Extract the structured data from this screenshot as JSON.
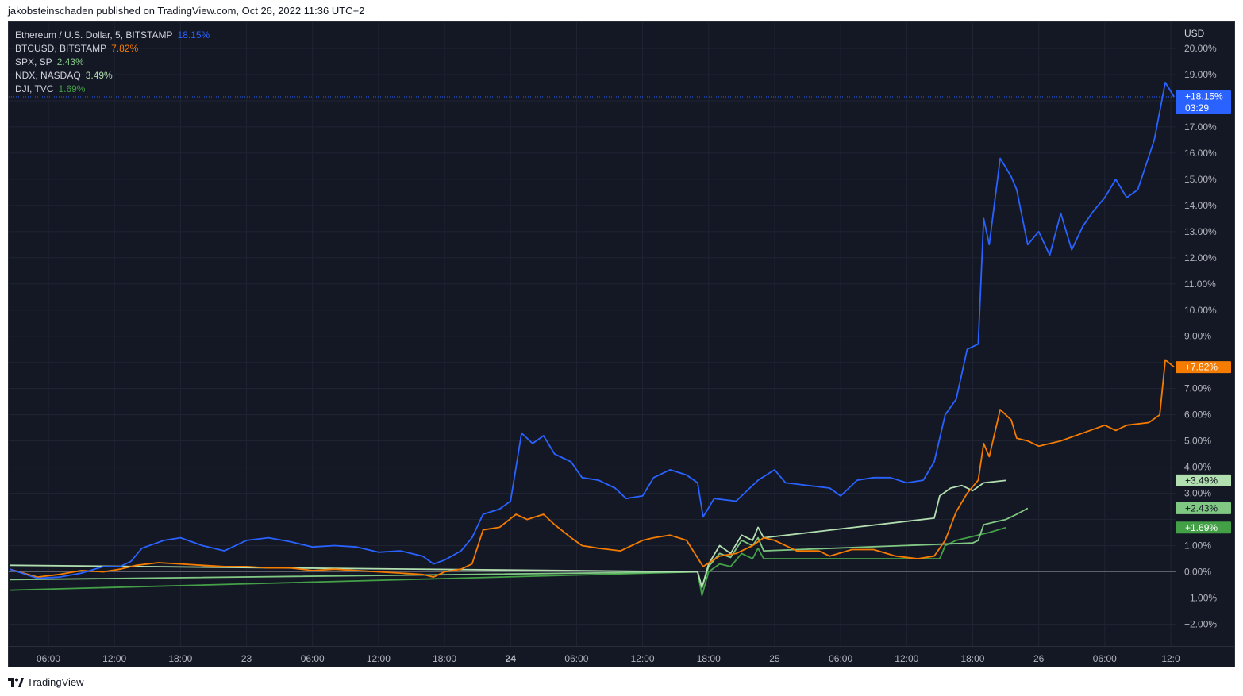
{
  "header": {
    "text": "jakobsteinschaden published on TradingView.com, Oct 26, 2022 11:36 UTC+2"
  },
  "footer": {
    "brand": "TradingView",
    "logo_icon": "tradingview-logo-icon"
  },
  "chart_data": {
    "type": "line",
    "currency_label": "USD",
    "y_unit": "%",
    "ylim": [
      -3.0,
      21.0
    ],
    "y_ticks": [
      "20.00%",
      "19.00%",
      "17.00%",
      "16.00%",
      "15.00%",
      "14.00%",
      "13.00%",
      "12.00%",
      "11.00%",
      "10.00%",
      "9.00%",
      "7.00%",
      "6.00%",
      "5.00%",
      "4.00%",
      "3.00%",
      "1.00%",
      "0.00%",
      "−1.00%",
      "−2.00%"
    ],
    "y_tick_values": [
      20,
      19,
      17,
      16,
      15,
      14,
      13,
      12,
      11,
      10,
      9,
      7,
      6,
      5,
      4,
      3,
      1,
      0,
      -1,
      -2
    ],
    "x_ticks": [
      "06:00",
      "12:00",
      "18:00",
      "23",
      "06:00",
      "12:00",
      "18:00",
      "24",
      "06:00",
      "12:00",
      "18:00",
      "25",
      "06:00",
      "12:00",
      "18:00",
      "26",
      "06:00",
      "12:0"
    ],
    "x_tick_hours": [
      6,
      12,
      18,
      24,
      30,
      36,
      42,
      48,
      54,
      60,
      66,
      72,
      78,
      84,
      90,
      96,
      102,
      108
    ],
    "x_bold_tick": "24",
    "xlim_hours": [
      2.5,
      108.5
    ],
    "grid": true,
    "legend_position": "top-left",
    "series": [
      {
        "name": "Ethereum / U.S. Dollar, 5, BITSTAMP",
        "value_label": "18.15%",
        "badge": "+18.15%",
        "badge_sub": "03:29",
        "last": 18.15,
        "color": "#2962ff",
        "points": [
          [
            2.5,
            0.1
          ],
          [
            5,
            -0.25
          ],
          [
            7,
            -0.2
          ],
          [
            9,
            -0.05
          ],
          [
            11,
            0.2
          ],
          [
            12.5,
            0.2
          ],
          [
            13.5,
            0.4
          ],
          [
            14.5,
            0.9
          ],
          [
            16.5,
            1.2
          ],
          [
            18,
            1.3
          ],
          [
            20,
            1.0
          ],
          [
            22,
            0.8
          ],
          [
            24,
            1.2
          ],
          [
            26,
            1.3
          ],
          [
            28,
            1.15
          ],
          [
            30,
            0.95
          ],
          [
            32,
            1.0
          ],
          [
            34,
            0.95
          ],
          [
            36,
            0.75
          ],
          [
            38,
            0.8
          ],
          [
            40,
            0.6
          ],
          [
            41,
            0.3
          ],
          [
            42,
            0.45
          ],
          [
            43.5,
            0.8
          ],
          [
            44.5,
            1.3
          ],
          [
            45.5,
            2.2
          ],
          [
            47,
            2.4
          ],
          [
            48,
            2.7
          ],
          [
            49,
            5.3
          ],
          [
            50,
            4.9
          ],
          [
            51,
            5.2
          ],
          [
            52,
            4.5
          ],
          [
            53.5,
            4.2
          ],
          [
            54.5,
            3.6
          ],
          [
            56,
            3.5
          ],
          [
            57.5,
            3.2
          ],
          [
            58.5,
            2.8
          ],
          [
            60,
            2.9
          ],
          [
            61,
            3.6
          ],
          [
            62.5,
            3.9
          ],
          [
            64,
            3.7
          ],
          [
            65,
            3.4
          ],
          [
            65.5,
            2.1
          ],
          [
            66.5,
            2.8
          ],
          [
            68.5,
            2.7
          ],
          [
            70.5,
            3.5
          ],
          [
            72,
            3.9
          ],
          [
            73,
            3.4
          ],
          [
            75,
            3.3
          ],
          [
            77,
            3.2
          ],
          [
            78,
            2.9
          ],
          [
            79.5,
            3.5
          ],
          [
            81,
            3.6
          ],
          [
            82.5,
            3.6
          ],
          [
            84,
            3.4
          ],
          [
            85.5,
            3.5
          ],
          [
            86.5,
            4.2
          ],
          [
            87.5,
            6.0
          ],
          [
            88.5,
            6.6
          ],
          [
            89.5,
            8.5
          ],
          [
            90.5,
            8.7
          ],
          [
            91,
            13.5
          ],
          [
            91.5,
            12.5
          ],
          [
            92.5,
            15.8
          ],
          [
            93.5,
            15.1
          ],
          [
            94,
            14.6
          ],
          [
            95,
            12.5
          ],
          [
            96,
            13.0
          ],
          [
            97,
            12.1
          ],
          [
            98,
            13.7
          ],
          [
            99,
            12.3
          ],
          [
            100,
            13.2
          ],
          [
            101,
            13.8
          ],
          [
            102,
            14.3
          ],
          [
            103,
            15.0
          ],
          [
            104,
            14.3
          ],
          [
            105,
            14.6
          ],
          [
            106.5,
            16.5
          ],
          [
            107.5,
            18.7
          ],
          [
            108.3,
            18.15
          ]
        ]
      },
      {
        "name": "BTCUSD, BITSTAMP",
        "value_label": "7.82%",
        "badge": "+7.82%",
        "last": 7.82,
        "color": "#f57c00",
        "points": [
          [
            2.5,
            0.1
          ],
          [
            5,
            -0.2
          ],
          [
            7,
            -0.1
          ],
          [
            9,
            0.05
          ],
          [
            11,
            0.0
          ],
          [
            12.5,
            0.1
          ],
          [
            14,
            0.25
          ],
          [
            16,
            0.35
          ],
          [
            18,
            0.3
          ],
          [
            20,
            0.25
          ],
          [
            22,
            0.2
          ],
          [
            24,
            0.2
          ],
          [
            26,
            0.15
          ],
          [
            28,
            0.15
          ],
          [
            30,
            0.05
          ],
          [
            32,
            0.1
          ],
          [
            34,
            0.05
          ],
          [
            36,
            0.0
          ],
          [
            38,
            -0.05
          ],
          [
            40,
            -0.1
          ],
          [
            41,
            -0.2
          ],
          [
            42,
            0.0
          ],
          [
            43.5,
            0.1
          ],
          [
            44.5,
            0.3
          ],
          [
            45.5,
            1.6
          ],
          [
            47,
            1.7
          ],
          [
            48.5,
            2.2
          ],
          [
            49.5,
            2.0
          ],
          [
            51,
            2.2
          ],
          [
            52,
            1.8
          ],
          [
            53.5,
            1.3
          ],
          [
            54.5,
            1.0
          ],
          [
            56,
            0.9
          ],
          [
            58,
            0.8
          ],
          [
            60,
            1.2
          ],
          [
            61,
            1.3
          ],
          [
            62.5,
            1.4
          ],
          [
            64,
            1.2
          ],
          [
            65.5,
            0.2
          ],
          [
            67,
            0.6
          ],
          [
            68.5,
            0.7
          ],
          [
            70,
            1.0
          ],
          [
            71,
            1.3
          ],
          [
            72,
            1.2
          ],
          [
            74,
            0.8
          ],
          [
            76,
            0.8
          ],
          [
            77,
            0.6
          ],
          [
            79,
            0.85
          ],
          [
            81,
            0.85
          ],
          [
            83,
            0.6
          ],
          [
            85,
            0.5
          ],
          [
            86.5,
            0.6
          ],
          [
            87.5,
            1.2
          ],
          [
            88.5,
            2.3
          ],
          [
            89.5,
            3.0
          ],
          [
            90.5,
            3.5
          ],
          [
            91,
            4.9
          ],
          [
            91.5,
            4.4
          ],
          [
            92.5,
            6.2
          ],
          [
            93.5,
            5.8
          ],
          [
            94,
            5.1
          ],
          [
            95,
            5.0
          ],
          [
            96,
            4.8
          ],
          [
            98,
            5.0
          ],
          [
            100,
            5.3
          ],
          [
            102,
            5.6
          ],
          [
            103,
            5.4
          ],
          [
            104,
            5.6
          ],
          [
            106,
            5.7
          ],
          [
            107,
            6.0
          ],
          [
            107.5,
            8.1
          ],
          [
            108.3,
            7.82
          ]
        ]
      },
      {
        "name": "SPX, SP",
        "value_label": "2.43%",
        "badge": "+2.43%",
        "last": 2.43,
        "color": "#81c784",
        "points": [
          [
            2.5,
            -0.3
          ],
          [
            65,
            0.0
          ],
          [
            65.4,
            -0.6
          ],
          [
            66,
            0.2
          ],
          [
            67,
            0.7
          ],
          [
            68,
            0.55
          ],
          [
            69,
            1.2
          ],
          [
            70,
            1.0
          ],
          [
            70.5,
            1.3
          ],
          [
            71,
            0.8
          ],
          [
            90,
            1.1
          ],
          [
            90.5,
            1.2
          ],
          [
            91,
            1.8
          ],
          [
            92,
            1.9
          ],
          [
            93,
            2.0
          ],
          [
            94,
            2.2
          ],
          [
            95,
            2.43
          ]
        ]
      },
      {
        "name": "NDX, NASDAQ",
        "value_label": "3.49%",
        "badge": "+3.49%",
        "last": 3.49,
        "color": "#b2dfb0",
        "points": [
          [
            2.5,
            0.25
          ],
          [
            65,
            0.0
          ],
          [
            65.4,
            -0.6
          ],
          [
            66,
            0.3
          ],
          [
            67,
            1.0
          ],
          [
            68,
            0.7
          ],
          [
            69,
            1.4
          ],
          [
            70,
            1.2
          ],
          [
            70.5,
            1.7
          ],
          [
            71,
            1.3
          ],
          [
            86.5,
            2.05
          ],
          [
            87,
            2.9
          ],
          [
            88,
            3.2
          ],
          [
            89,
            3.3
          ],
          [
            90,
            3.1
          ],
          [
            91,
            3.4
          ],
          [
            93,
            3.49
          ]
        ]
      },
      {
        "name": "DJI, TVC",
        "value_label": "1.69%",
        "badge": "+1.69%",
        "last": 1.69,
        "color": "#43a047",
        "points": [
          [
            2.5,
            -0.7
          ],
          [
            65,
            0.0
          ],
          [
            65.4,
            -0.9
          ],
          [
            66,
            0.0
          ],
          [
            67,
            0.3
          ],
          [
            68,
            0.2
          ],
          [
            69,
            0.7
          ],
          [
            70,
            0.5
          ],
          [
            70.5,
            0.9
          ],
          [
            71,
            0.5
          ],
          [
            87,
            0.5
          ],
          [
            87.5,
            1.0
          ],
          [
            88.5,
            1.2
          ],
          [
            89.5,
            1.3
          ],
          [
            90.5,
            1.4
          ],
          [
            91.5,
            1.5
          ],
          [
            93,
            1.69
          ]
        ]
      }
    ]
  }
}
